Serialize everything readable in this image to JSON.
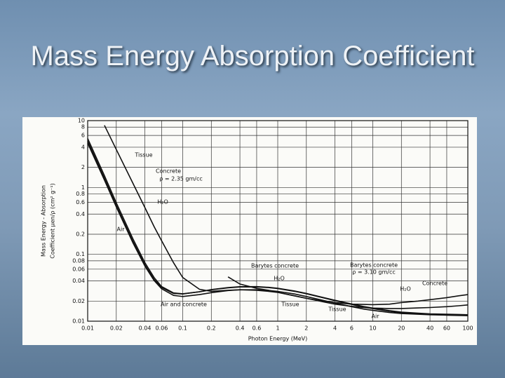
{
  "slide_title": "Mass Energy Absorption Coefficient",
  "chart_data": {
    "type": "line",
    "xlabel": "Photon Energy (MeV)",
    "ylabel": [
      "Mass Energy - Absorption",
      "Coefficient μen/ρ (cm² g⁻¹)"
    ],
    "xscale": "log",
    "yscale": "log",
    "grid": true,
    "xlim": [
      0.01,
      100
    ],
    "ylim": [
      0.01,
      10
    ],
    "xticks": [
      0.01,
      0.02,
      0.04,
      0.06,
      0.1,
      0.2,
      0.4,
      0.6,
      1,
      2,
      4,
      6,
      10,
      20,
      40,
      60,
      100
    ],
    "yticks": [
      0.01,
      0.02,
      0.04,
      0.06,
      0.08,
      0.1,
      0.2,
      0.4,
      0.6,
      0.8,
      1,
      2,
      4,
      6,
      8,
      10
    ],
    "x": [
      0.01,
      0.015,
      0.02,
      0.03,
      0.04,
      0.05,
      0.06,
      0.08,
      0.1,
      0.15,
      0.2,
      0.3,
      0.4,
      0.6,
      0.8,
      1,
      1.5,
      2,
      3,
      4,
      6,
      8,
      10,
      15,
      20,
      30,
      40,
      60,
      80,
      100
    ],
    "series": [
      {
        "name": "Tissue",
        "color": "#111111",
        "values": [
          5.4,
          1.5,
          0.59,
          0.17,
          0.075,
          0.045,
          0.033,
          0.0265,
          0.0257,
          0.0275,
          0.0295,
          0.0316,
          0.0325,
          0.0326,
          0.0318,
          0.0308,
          0.028,
          0.0257,
          0.0224,
          0.0203,
          0.0178,
          0.0163,
          0.0154,
          0.0141,
          0.0134,
          0.0129,
          0.0126,
          0.0124,
          0.0123,
          0.0122
        ]
      },
      {
        "name": "Concrete",
        "color": "#111111",
        "values": [
          null,
          8.5,
          3.7,
          1.15,
          0.5,
          0.26,
          0.16,
          0.075,
          0.045,
          0.03,
          0.028,
          0.029,
          0.0295,
          0.029,
          0.028,
          0.027,
          0.024,
          0.022,
          0.0195,
          0.018,
          0.0167,
          0.016,
          0.0157,
          0.0155,
          0.0155,
          0.0158,
          0.016,
          0.0165,
          0.017,
          0.0175
        ]
      },
      {
        "name": "H₂O",
        "color": "#111111",
        "values": [
          4.94,
          1.37,
          0.539,
          0.156,
          0.0695,
          0.0422,
          0.0319,
          0.026,
          0.0255,
          0.0276,
          0.0297,
          0.0319,
          0.0328,
          0.0329,
          0.0321,
          0.0311,
          0.0283,
          0.026,
          0.0227,
          0.0206,
          0.0181,
          0.0166,
          0.0157,
          0.0144,
          0.0137,
          0.0132,
          0.0129,
          0.0127,
          0.0126,
          0.0125
        ]
      },
      {
        "name": "Air",
        "color": "#111111",
        "values": [
          4.61,
          1.29,
          0.511,
          0.148,
          0.0668,
          0.0406,
          0.0305,
          0.0243,
          0.0234,
          0.025,
          0.0267,
          0.0287,
          0.0295,
          0.0295,
          0.0288,
          0.0279,
          0.0255,
          0.0234,
          0.0205,
          0.0187,
          0.0165,
          0.0152,
          0.0145,
          0.0135,
          0.013,
          0.0127,
          0.0125,
          0.0123,
          0.0122,
          0.0121
        ]
      },
      {
        "name": "Barytes concrete",
        "color": "#111111",
        "values": [
          null,
          null,
          null,
          null,
          null,
          null,
          null,
          null,
          null,
          null,
          null,
          0.046,
          0.036,
          0.031,
          0.029,
          0.027,
          0.024,
          0.022,
          0.02,
          0.019,
          0.018,
          0.0178,
          0.0177,
          0.018,
          0.019,
          0.02,
          0.021,
          0.0225,
          0.024,
          0.025
        ]
      }
    ],
    "annotations": [
      "ρ = 2.35 gm/cc",
      "Air and concrete",
      "H₂O",
      "Tissue",
      "Barytes concrete",
      "ρ = 3.10 gm/cc",
      "Tissue",
      "Air",
      "H₂O",
      "Concrete"
    ]
  }
}
